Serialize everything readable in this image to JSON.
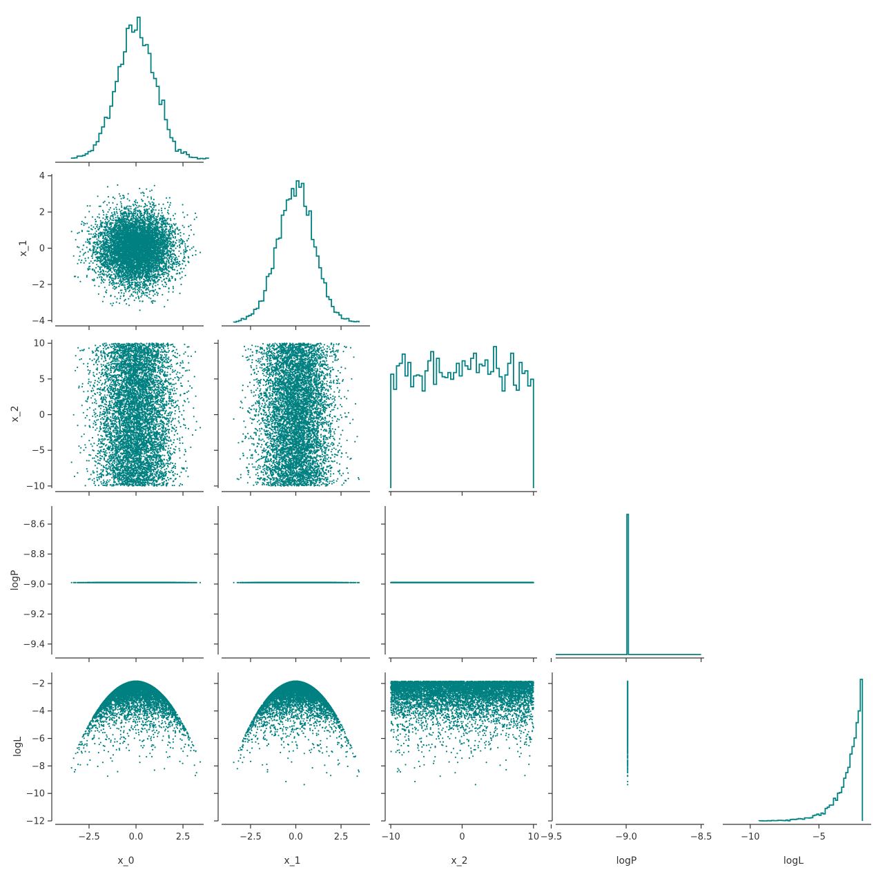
{
  "chart_data": {
    "type": "corner-plot",
    "variables": [
      "x_0",
      "x_1",
      "x_2",
      "logP",
      "logL"
    ],
    "color": "#008080",
    "grid": false,
    "axis_labels": {
      "x": [
        "x_0",
        "x_1",
        "x_2",
        "logP",
        "logL"
      ],
      "y": [
        "",
        "x_1",
        "x_2",
        "logP",
        "logL"
      ]
    },
    "ranges": {
      "x_0": [
        -4.3,
        3.6
      ],
      "x_1": [
        -4.1,
        4.1
      ],
      "x_2": [
        -10.3,
        10.5
      ],
      "logP": [
        -9.47,
        -8.48
      ],
      "logL": [
        -12.0,
        -1.2
      ]
    },
    "x_ticks": {
      "x_0": [
        {
          "v": -2.5,
          "label": "−2.5"
        },
        {
          "v": 0.0,
          "label": "0.0"
        },
        {
          "v": 2.5,
          "label": "2.5"
        }
      ],
      "x_1": [
        {
          "v": -2.5,
          "label": "−2.5"
        },
        {
          "v": 0.0,
          "label": "0.0"
        },
        {
          "v": 2.5,
          "label": "2.5"
        }
      ],
      "x_2": [
        {
          "v": -10,
          "label": "−10"
        },
        {
          "v": 0,
          "label": "0"
        },
        {
          "v": 10,
          "label": "10"
        }
      ],
      "logP": [
        {
          "v": -9.5,
          "label": "−9.5"
        },
        {
          "v": -9.0,
          "label": "−9.0"
        },
        {
          "v": -8.5,
          "label": "−8.5"
        }
      ],
      "logL": [
        {
          "v": -10,
          "label": "−10"
        },
        {
          "v": -5,
          "label": "−5"
        }
      ]
    },
    "y_ticks": {
      "x_1": [
        {
          "v": 4,
          "label": "4"
        },
        {
          "v": 2,
          "label": "2"
        },
        {
          "v": 0,
          "label": "0"
        },
        {
          "v": -2,
          "label": "−2"
        },
        {
          "v": -4,
          "label": "−4"
        }
      ],
      "x_2": [
        {
          "v": 10,
          "label": "10"
        },
        {
          "v": 5,
          "label": "5"
        },
        {
          "v": 0,
          "label": "0"
        },
        {
          "v": -5,
          "label": "−5"
        },
        {
          "v": -10,
          "label": "−10"
        }
      ],
      "logP": [
        {
          "v": -8.6,
          "label": "−8.6"
        },
        {
          "v": -8.8,
          "label": "−8.8"
        },
        {
          "v": -9.0,
          "label": "−9.0"
        },
        {
          "v": -9.2,
          "label": "−9.2"
        },
        {
          "v": -9.4,
          "label": "−9.4"
        }
      ],
      "logL": [
        {
          "v": -2,
          "label": "−2"
        },
        {
          "v": -4,
          "label": "−4"
        },
        {
          "v": -6,
          "label": "−6"
        },
        {
          "v": -8,
          "label": "−8"
        },
        {
          "v": -10,
          "label": "−10"
        },
        {
          "v": -12,
          "label": "−12"
        }
      ]
    },
    "samples": {
      "n": 7000,
      "x_0": {
        "distribution": "normal",
        "mean": 0.0,
        "std": 1.0
      },
      "x_1": {
        "distribution": "normal",
        "mean": 0.0,
        "std": 1.0
      },
      "x_2": {
        "distribution": "uniform",
        "low": -10,
        "high": 10
      },
      "logP": {
        "constant": -8.99
      },
      "logL": {
        "relation": "-1.84 - 0.5*(x_0^2 + x_1^2)"
      }
    },
    "histograms": {
      "bins": 50,
      "style": "step"
    }
  }
}
